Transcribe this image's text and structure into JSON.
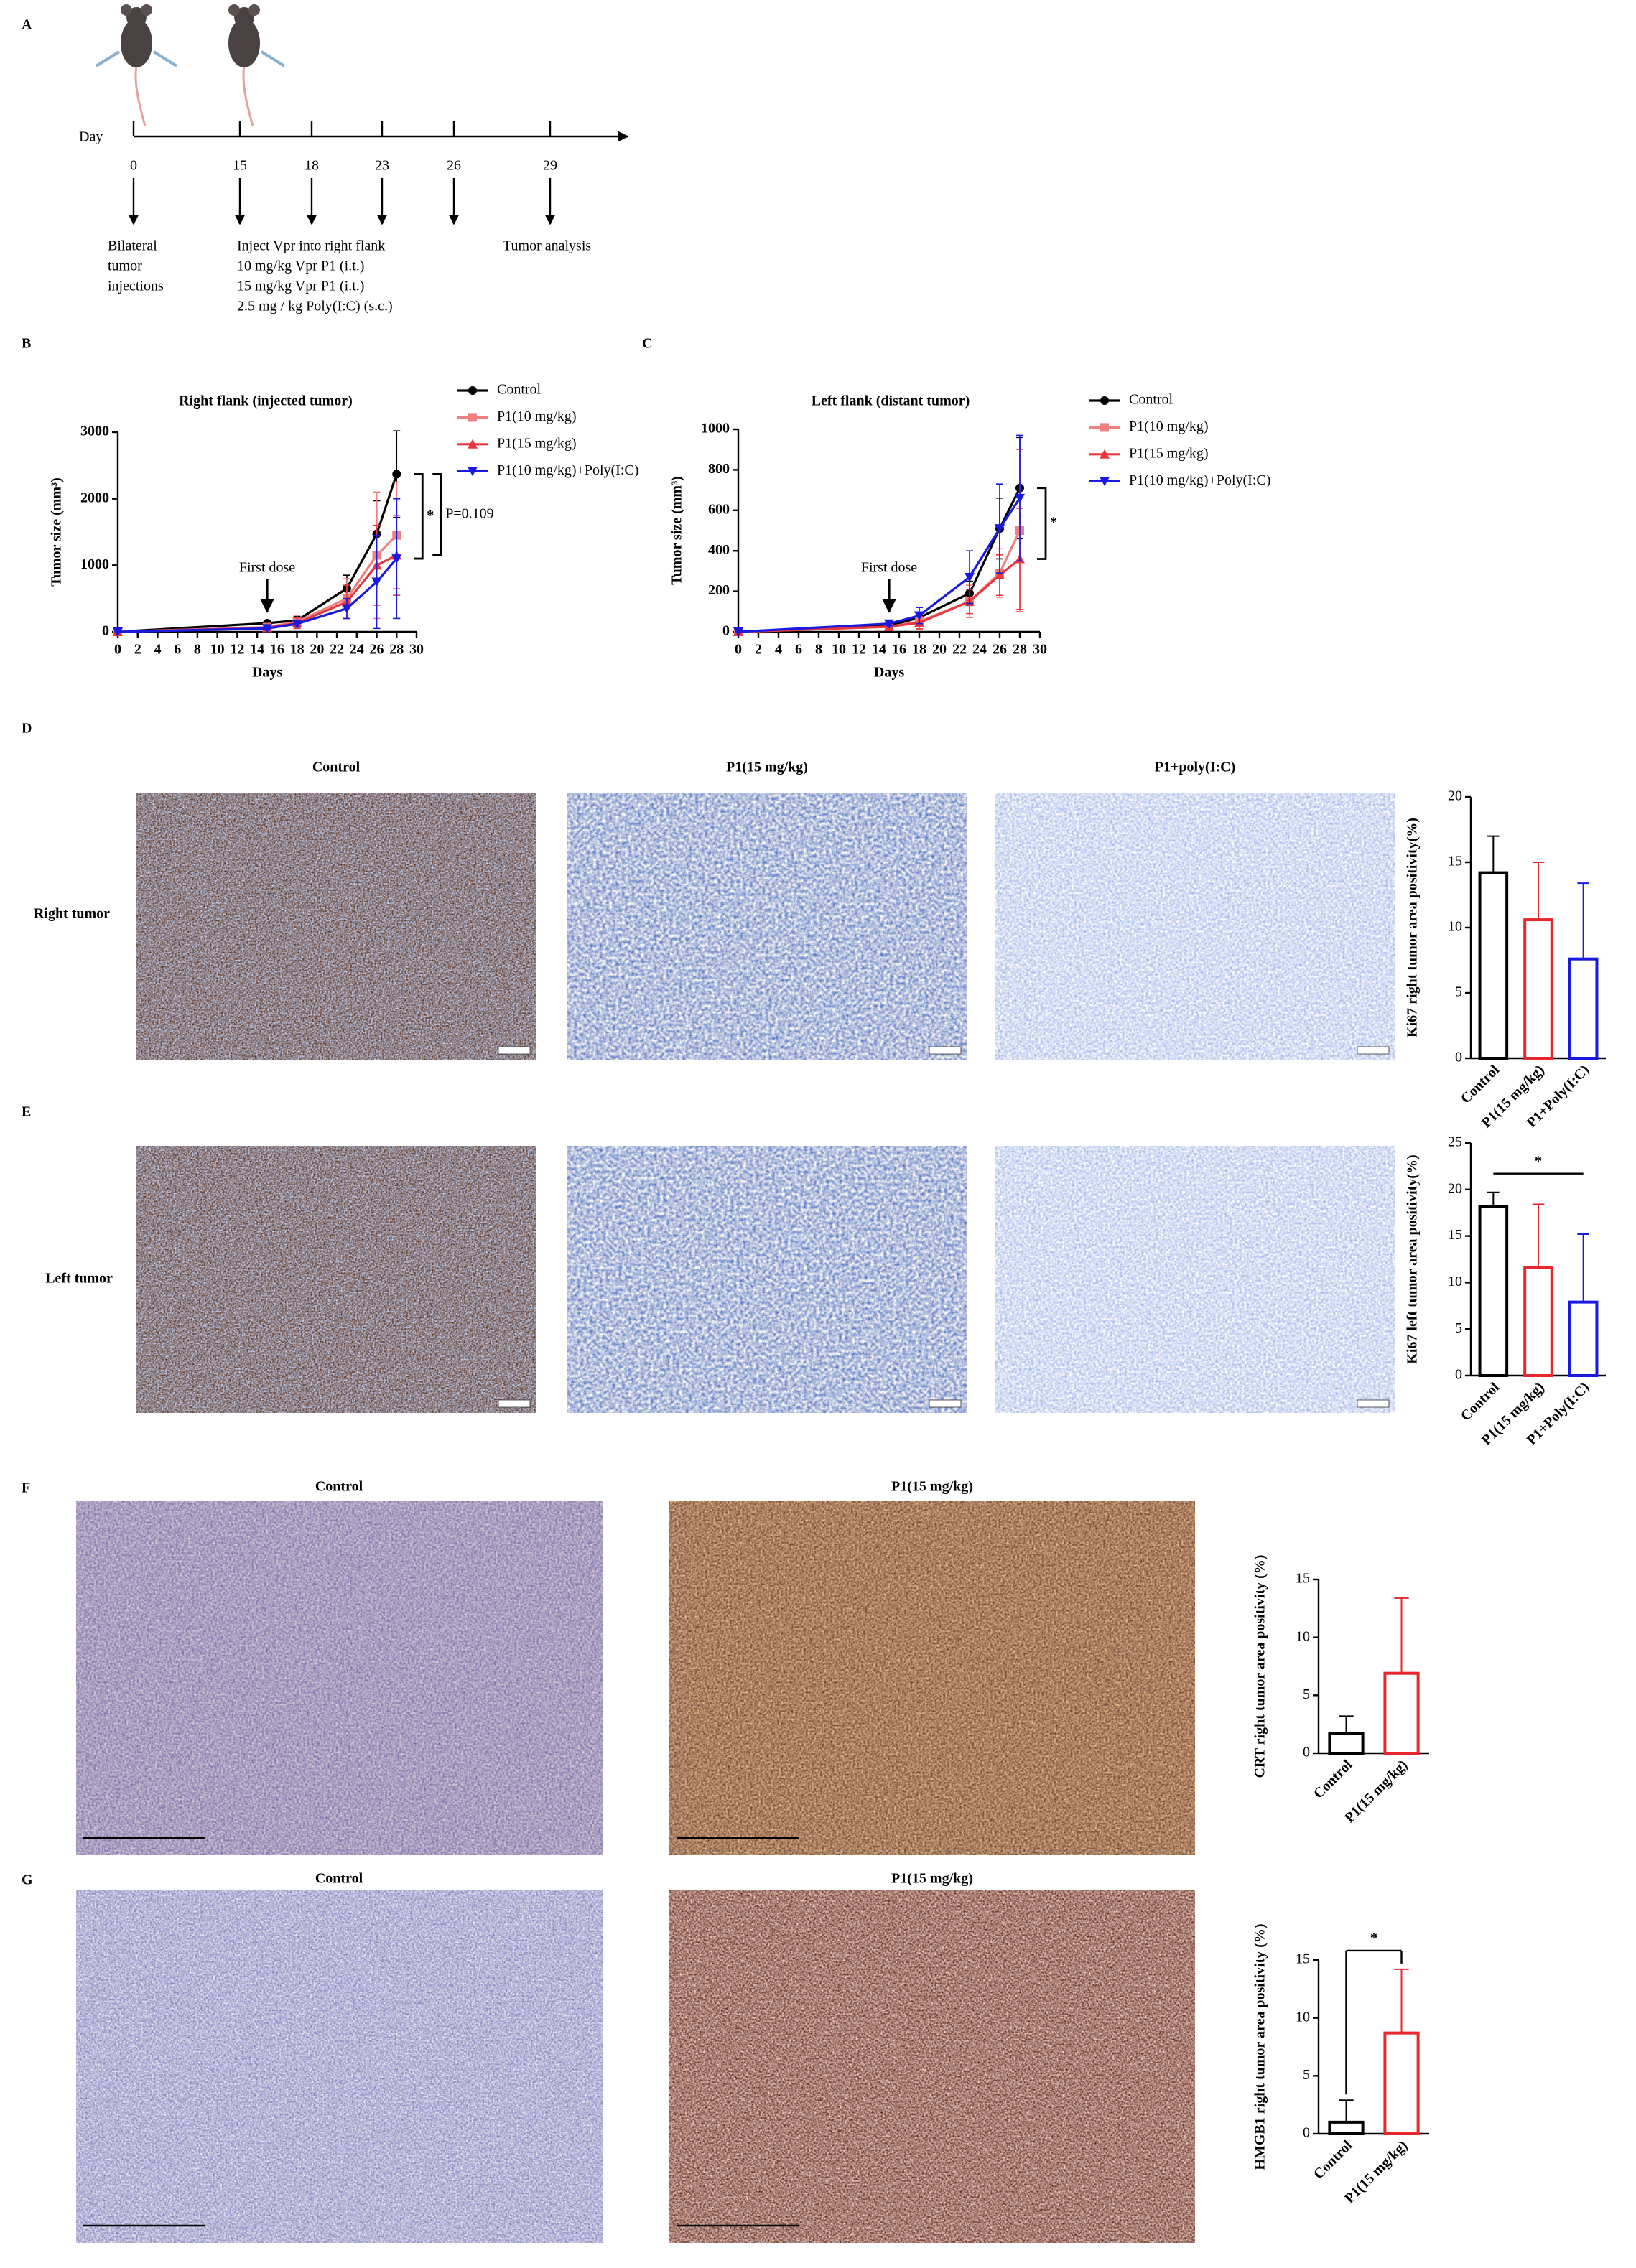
{
  "panel_labels": [
    "A",
    "B",
    "C",
    "D",
    "E",
    "F",
    "G"
  ],
  "timeline": {
    "axis_label": "Day",
    "days": [
      "0",
      "15",
      "18",
      "23",
      "26",
      "29"
    ],
    "notes": [
      [
        "Bilateral",
        "tumor",
        "injections"
      ],
      [
        "Inject Vpr into right flank",
        "10 mg/kg Vpr P1 (i.t.)",
        "15 mg/kg Vpr P1 (i.t.)",
        "2.5 mg / kg Poly(I:C) (s.c.)"
      ],
      [
        "Tumor analysis"
      ]
    ]
  },
  "micrographs": {
    "D": {
      "columns": [
        "Control",
        "P1(15 mg/kg)",
        "P1+poly(I:C)"
      ],
      "rows": [
        "Right tumor",
        "Left tumor"
      ]
    },
    "F": {
      "columns": [
        "Control",
        "P1(15 mg/kg)"
      ]
    },
    "G": {
      "columns": [
        "Control",
        "P1(15 mg/kg)"
      ]
    }
  },
  "chart_data": [
    {
      "type": "line",
      "title": "Right flank (injected tumor)",
      "x_label": "Days",
      "y_label": "Tumor size (mm³)",
      "x": [
        0,
        15,
        18,
        23,
        26,
        28
      ],
      "xlim": [
        0,
        30
      ],
      "xticks": [
        0,
        2,
        4,
        6,
        8,
        10,
        12,
        14,
        16,
        18,
        20,
        22,
        24,
        26,
        28,
        30
      ],
      "ylim": [
        0,
        3000
      ],
      "yticks": [
        0,
        1000,
        2000,
        3000
      ],
      "series": [
        {
          "name": "Control",
          "color": "#000000",
          "marker": "circle",
          "values": [
            0,
            130,
            170,
            650,
            1470,
            2370
          ],
          "errors": [
            0,
            40,
            60,
            200,
            500,
            650
          ]
        },
        {
          "name": "P1(10 mg/kg)",
          "color": "#f08080",
          "marker": "square",
          "values": [
            0,
            70,
            150,
            500,
            1150,
            1450
          ],
          "errors": [
            0,
            30,
            100,
            300,
            950,
            800
          ]
        },
        {
          "name": "P1(15 mg/kg)",
          "color": "#e8383d",
          "marker": "triangle",
          "values": [
            0,
            60,
            130,
            450,
            1000,
            1150
          ],
          "errors": [
            0,
            30,
            80,
            250,
            600,
            600
          ]
        },
        {
          "name": "P1(10 mg/kg)+Poly(I:C)",
          "color": "#1a1adf",
          "marker": "triangle-down",
          "values": [
            0,
            50,
            120,
            350,
            750,
            1100
          ],
          "errors": [
            0,
            20,
            50,
            150,
            700,
            900
          ]
        }
      ],
      "annotations": [
        {
          "text": "First dose",
          "x": 15
        }
      ],
      "significance": [
        {
          "text": "*",
          "between": [
            0,
            3
          ]
        },
        {
          "text": "P=0.109",
          "between": [
            0,
            2
          ]
        }
      ]
    },
    {
      "type": "line",
      "title": "Left flank (distant tumor)",
      "x_label": "Days",
      "y_label": "Tumor size (mm³)",
      "x": [
        0,
        15,
        18,
        23,
        26,
        28
      ],
      "xlim": [
        0,
        30
      ],
      "xticks": [
        0,
        2,
        4,
        6,
        8,
        10,
        12,
        14,
        16,
        18,
        20,
        22,
        24,
        26,
        28,
        30
      ],
      "ylim": [
        0,
        1000
      ],
      "yticks": [
        0,
        200,
        400,
        600,
        800,
        1000
      ],
      "series": [
        {
          "name": "Control",
          "color": "#000000",
          "marker": "circle",
          "values": [
            0,
            30,
            70,
            190,
            510,
            710
          ],
          "errors": [
            0,
            10,
            20,
            60,
            150,
            250
          ]
        },
        {
          "name": "P1(10 mg/kg)",
          "color": "#f08080",
          "marker": "square",
          "values": [
            0,
            25,
            50,
            150,
            290,
            500
          ],
          "errors": [
            0,
            10,
            40,
            80,
            120,
            400
          ]
        },
        {
          "name": "P1(15 mg/kg)",
          "color": "#e8383d",
          "marker": "triangle",
          "values": [
            0,
            25,
            45,
            150,
            280,
            360
          ],
          "errors": [
            0,
            10,
            30,
            60,
            100,
            250
          ]
        },
        {
          "name": "P1(10 mg/kg)+Poly(I:C)",
          "color": "#1a1adf",
          "marker": "triangle-down",
          "values": [
            0,
            40,
            80,
            270,
            510,
            660
          ],
          "errors": [
            0,
            10,
            40,
            130,
            220,
            310
          ]
        }
      ],
      "annotations": [
        {
          "text": "First dose",
          "x": 15
        }
      ],
      "significance": [
        {
          "text": "*",
          "between": [
            0,
            2
          ]
        }
      ]
    },
    {
      "type": "bar",
      "y_label": "Ki67 right tumor area positivity(%)",
      "categories": [
        "Control",
        "P1(15 mg/kg)",
        "P1+Poly(I:C)"
      ],
      "values": [
        14.2,
        10.6,
        7.6
      ],
      "errors": [
        2.8,
        4.4,
        5.8
      ],
      "colors": [
        "#000000",
        "#e8262d",
        "#1a1adf"
      ],
      "ylim": [
        0,
        20
      ],
      "yticks": [
        0,
        5,
        10,
        15,
        20
      ]
    },
    {
      "type": "bar",
      "y_label": "Ki67 left tumor area positivity(%)",
      "categories": [
        "Control",
        "P1(15 mg/kg)",
        "P1+Poly(I:C)"
      ],
      "values": [
        18.2,
        11.6,
        7.9
      ],
      "errors": [
        1.5,
        6.8,
        7.3
      ],
      "colors": [
        "#000000",
        "#e8262d",
        "#1a1adf"
      ],
      "ylim": [
        0,
        25
      ],
      "yticks": [
        0,
        5,
        10,
        15,
        20,
        25
      ],
      "significance": [
        {
          "text": "*",
          "between": [
            0,
            2
          ],
          "drops": false
        }
      ]
    },
    {
      "type": "bar",
      "y_label": "CRT right tumor area positivity (%)",
      "categories": [
        "Control",
        "P1(15 mg/kg)"
      ],
      "values": [
        1.7,
        6.9
      ],
      "errors": [
        1.5,
        6.5
      ],
      "colors": [
        "#000000",
        "#e8262d"
      ],
      "ylim": [
        0,
        15
      ],
      "yticks": [
        0,
        5,
        10,
        15
      ]
    },
    {
      "type": "bar",
      "y_label": "HMGB1 right tumor area positivity (%)",
      "categories": [
        "Control",
        "P1(15 mg/kg)"
      ],
      "values": [
        1.0,
        8.7
      ],
      "errors": [
        1.9,
        5.5
      ],
      "colors": [
        "#000000",
        "#e8262d"
      ],
      "ylim": [
        0,
        15
      ],
      "yticks": [
        0,
        5,
        10,
        15
      ],
      "significance": [
        {
          "text": "*",
          "between": [
            0,
            1
          ],
          "drops": true
        }
      ]
    }
  ]
}
